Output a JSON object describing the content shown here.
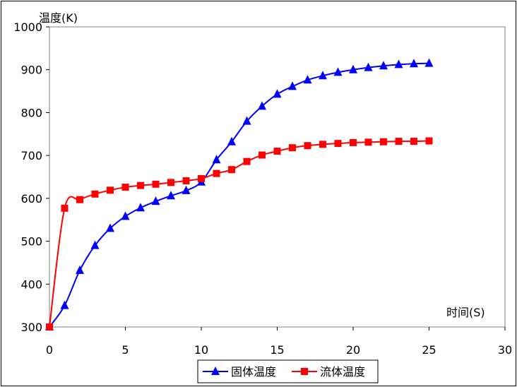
{
  "chart_data": {
    "type": "line",
    "ylabel": "温度(K)",
    "xlabel": "时间(S)",
    "xlim": [
      0,
      30
    ],
    "ylim": [
      300,
      1000
    ],
    "xticks": [
      0,
      5,
      10,
      15,
      20,
      25,
      30
    ],
    "yticks": [
      300,
      400,
      500,
      600,
      700,
      800,
      900,
      1000
    ],
    "xtick_labels": [
      "0",
      "5",
      "10",
      "15",
      "20",
      "25",
      "30"
    ],
    "ytick_labels": [
      "300",
      "400",
      "500",
      "600",
      "700",
      "800",
      "900",
      "1000"
    ],
    "grid": false,
    "legend_position": "bottom-center",
    "series": [
      {
        "name": "固体温度",
        "color": "#0000ff",
        "marker": "triangle",
        "x": [
          0,
          1,
          2,
          3,
          4,
          5,
          6,
          7,
          8,
          9,
          10,
          11,
          12,
          13,
          14,
          15,
          16,
          17,
          18,
          19,
          20,
          21,
          22,
          23,
          24,
          25
        ],
        "y": [
          300,
          350,
          432,
          490,
          530,
          558,
          578,
          593,
          606,
          618,
          638,
          690,
          732,
          780,
          815,
          843,
          861,
          876,
          886,
          894,
          900,
          905,
          909,
          912,
          914,
          915
        ]
      },
      {
        "name": "流体温度",
        "color": "#ff0000",
        "marker": "square",
        "x": [
          0,
          1,
          2,
          3,
          4,
          5,
          6,
          7,
          8,
          9,
          10,
          11,
          12,
          13,
          14,
          15,
          16,
          17,
          18,
          19,
          20,
          21,
          22,
          23,
          24,
          25
        ],
        "y": [
          300,
          577,
          597,
          610,
          619,
          626,
          630,
          633,
          637,
          641,
          646,
          658,
          667,
          686,
          701,
          710,
          718,
          723,
          726,
          728,
          730,
          731,
          732,
          733,
          733,
          734
        ]
      }
    ]
  }
}
